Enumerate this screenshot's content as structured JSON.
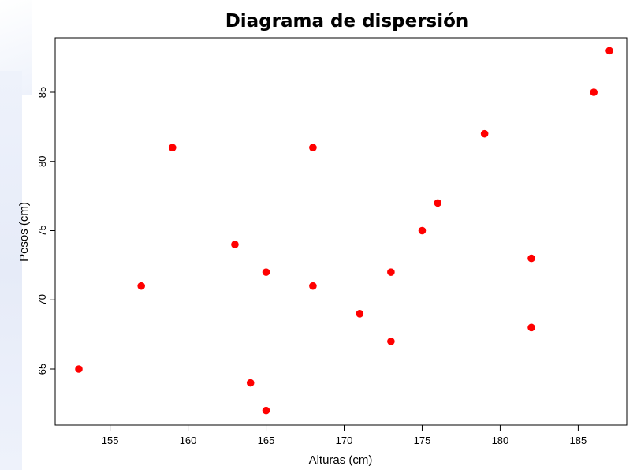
{
  "chart_data": {
    "type": "scatter",
    "title": "Diagrama de dispersión",
    "xlabel": "Alturas (cm)",
    "ylabel": "Pesos (cm)",
    "xlim": [
      152,
      188
    ],
    "ylim": [
      61,
      89
    ],
    "x_ticks": [
      155,
      160,
      165,
      170,
      175,
      180,
      185
    ],
    "y_ticks": [
      65,
      70,
      75,
      80,
      85
    ],
    "grid": false,
    "point_color": "#ff0000",
    "points": [
      {
        "x": 153,
        "y": 65
      },
      {
        "x": 157,
        "y": 71
      },
      {
        "x": 159,
        "y": 81
      },
      {
        "x": 163,
        "y": 74
      },
      {
        "x": 164,
        "y": 64
      },
      {
        "x": 165,
        "y": 72
      },
      {
        "x": 165,
        "y": 62
      },
      {
        "x": 168,
        "y": 81
      },
      {
        "x": 168,
        "y": 71
      },
      {
        "x": 171,
        "y": 69
      },
      {
        "x": 173,
        "y": 72
      },
      {
        "x": 173,
        "y": 67
      },
      {
        "x": 175,
        "y": 75
      },
      {
        "x": 176,
        "y": 77
      },
      {
        "x": 179,
        "y": 82
      },
      {
        "x": 182,
        "y": 73
      },
      {
        "x": 182,
        "y": 68
      },
      {
        "x": 186,
        "y": 85
      },
      {
        "x": 187,
        "y": 88
      }
    ]
  }
}
